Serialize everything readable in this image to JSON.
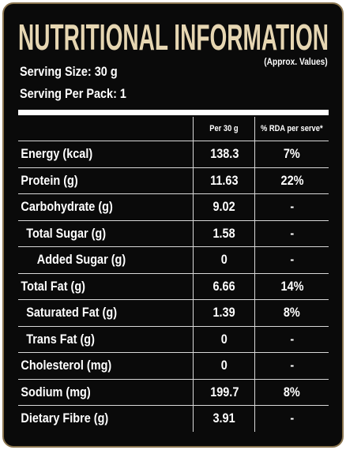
{
  "header": {
    "title": "NUTRITIONAL INFORMATION",
    "serving_size": "Serving Size: 30 g",
    "servings_per_pack": "Serving Per Pack: 1",
    "note": "(Approx. Values)"
  },
  "table": {
    "columns": [
      "Per 30 g",
      "% RDA per serve*"
    ],
    "rows": [
      [
        "Energy (kcal)",
        "138.3",
        "7%"
      ],
      [
        "Protein (g)",
        "11.63",
        "22%"
      ],
      [
        "Carbohydrate (g)",
        "9.02",
        "-"
      ],
      [
        "Total Sugar (g)",
        "1.58",
        "-"
      ],
      [
        "Added Sugar (g)",
        "0",
        "-"
      ],
      [
        "Total Fat (g)",
        "6.66",
        "14%"
      ],
      [
        "Saturated Fat (g)",
        "1.39",
        "8%"
      ],
      [
        "Trans Fat (g)",
        "0",
        "-"
      ],
      [
        "Cholesterol (mg)",
        "0",
        "-"
      ],
      [
        "Sodium (mg)",
        "199.7",
        "8%"
      ],
      [
        "Dietary Fibre (g)",
        "3.91",
        "-"
      ]
    ]
  }
}
